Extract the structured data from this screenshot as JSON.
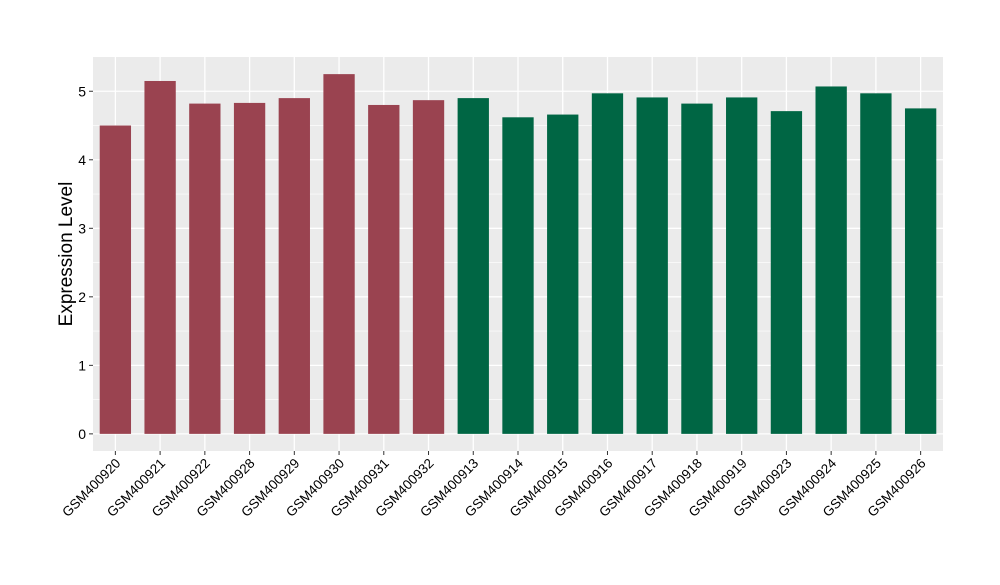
{
  "chart_data": {
    "type": "bar",
    "title": "",
    "xlabel": "",
    "ylabel": "Expression Level",
    "ylim": [
      -0.25,
      5.5
    ],
    "yticks": [
      0,
      1,
      2,
      3,
      4,
      5
    ],
    "grid": true,
    "legend": "none",
    "colors": {
      "group1": "#9A4350",
      "group2": "#006644",
      "panel": "#EBEBEB",
      "grid": "#FFFFFF"
    },
    "categories": [
      "GSM400920",
      "GSM400921",
      "GSM400922",
      "GSM400928",
      "GSM400929",
      "GSM400930",
      "GSM400931",
      "GSM400932",
      "GSM400913",
      "GSM400914",
      "GSM400915",
      "GSM400916",
      "GSM400917",
      "GSM400918",
      "GSM400919",
      "GSM400923",
      "GSM400924",
      "GSM400925",
      "GSM400926"
    ],
    "values": [
      4.5,
      5.15,
      4.82,
      4.83,
      4.9,
      5.25,
      4.8,
      4.87,
      4.9,
      4.62,
      4.66,
      4.97,
      4.91,
      4.82,
      4.91,
      4.71,
      5.07,
      4.97,
      4.75
    ],
    "groups": [
      1,
      1,
      1,
      1,
      1,
      1,
      1,
      1,
      2,
      2,
      2,
      2,
      2,
      2,
      2,
      2,
      2,
      2,
      2
    ]
  }
}
